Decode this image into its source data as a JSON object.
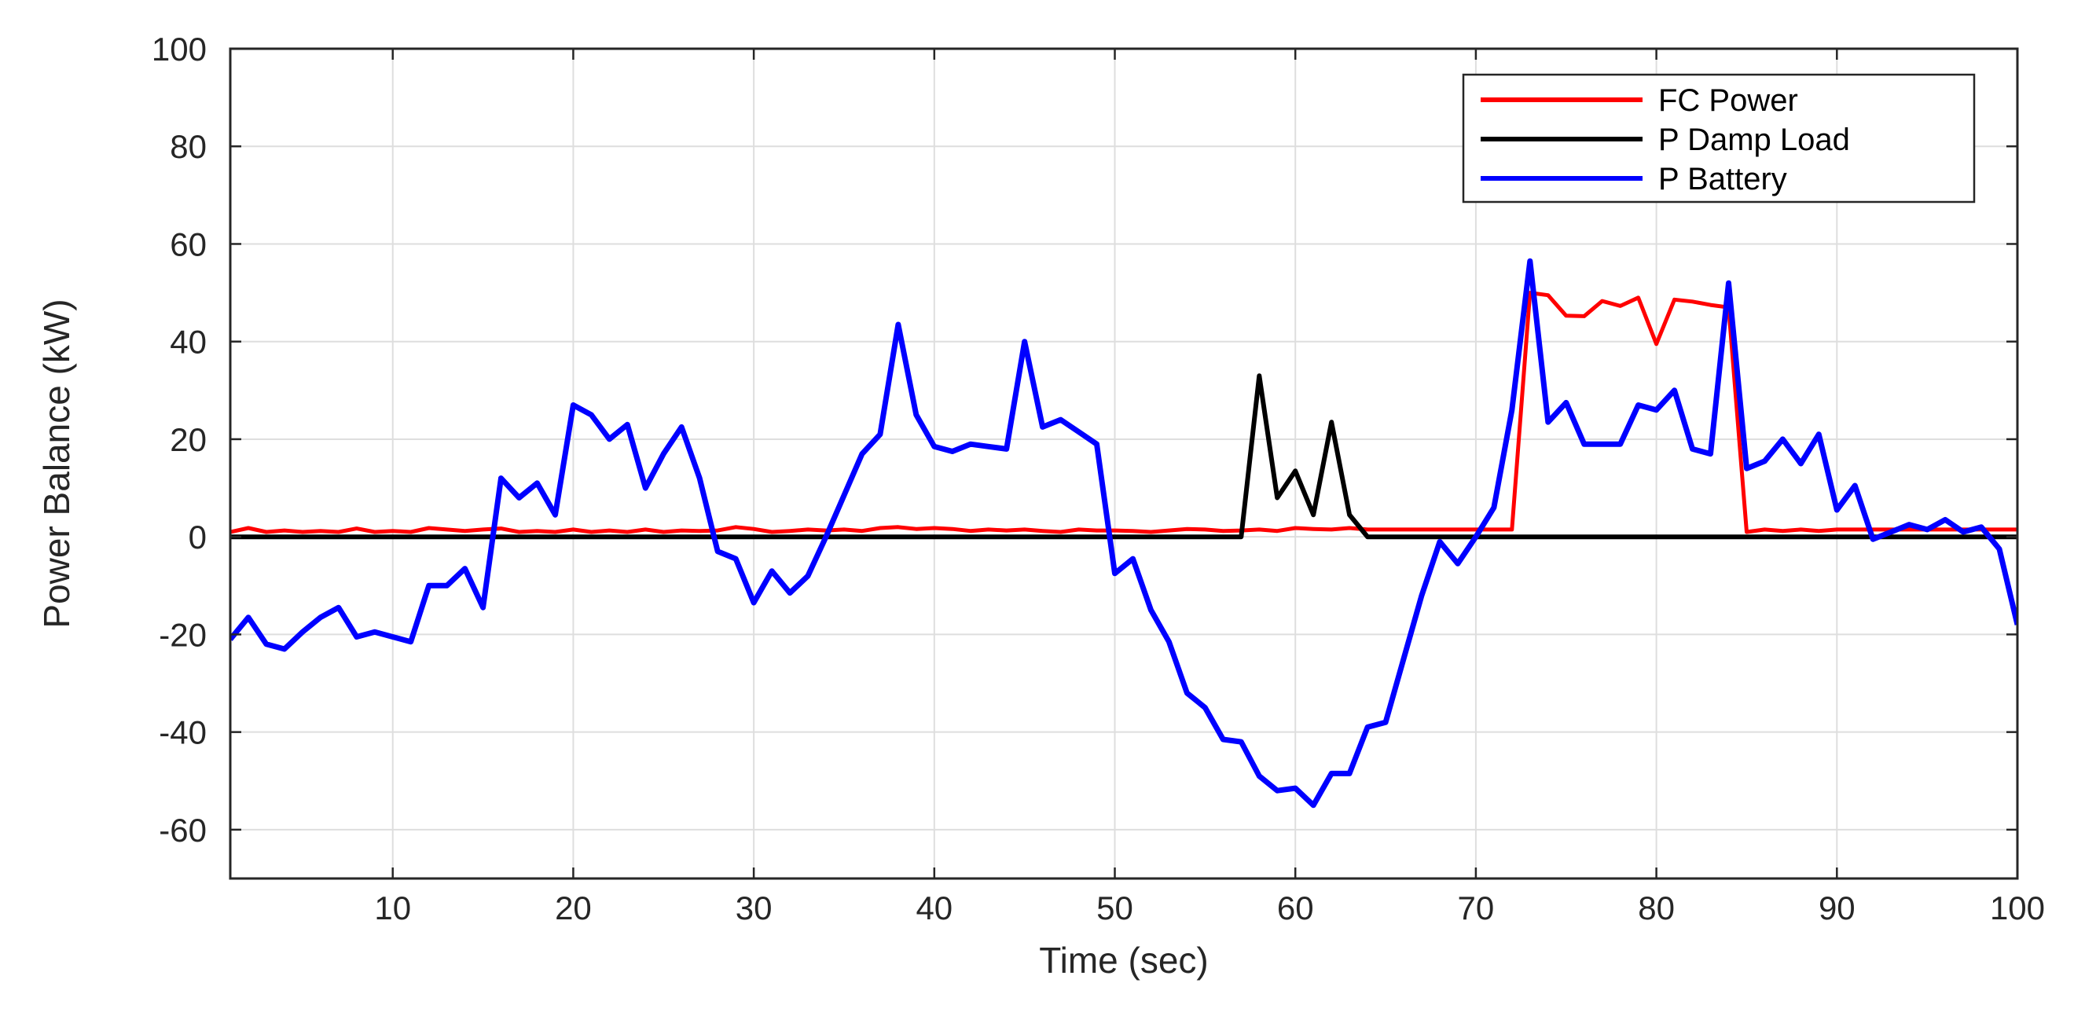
{
  "chart_data": {
    "type": "line",
    "title": "",
    "xlabel": "Time (sec)",
    "ylabel": "Power Balance (kW)",
    "xlim": [
      1,
      100
    ],
    "ylim": [
      -70,
      100
    ],
    "xticks": [
      10,
      20,
      30,
      40,
      50,
      60,
      70,
      80,
      90,
      100
    ],
    "yticks": [
      100,
      80,
      60,
      40,
      20,
      0,
      -20,
      -40,
      -60
    ],
    "grid": true,
    "legend_position": "top-right",
    "series": [
      {
        "name": "FC Power",
        "color": "#ff0000",
        "x": [
          1,
          2,
          3,
          4,
          5,
          6,
          7,
          8,
          9,
          10,
          11,
          12,
          13,
          14,
          15,
          16,
          17,
          18,
          19,
          20,
          21,
          22,
          23,
          24,
          25,
          26,
          27,
          28,
          29,
          30,
          31,
          32,
          33,
          34,
          35,
          36,
          37,
          38,
          39,
          40,
          41,
          42,
          43,
          44,
          45,
          46,
          47,
          48,
          49,
          50,
          51,
          52,
          53,
          54,
          55,
          56,
          57,
          58,
          59,
          60,
          61,
          62,
          63,
          64,
          65,
          66,
          67,
          68,
          69,
          70,
          71,
          72,
          73,
          74,
          75,
          76,
          77,
          78,
          79,
          80,
          81,
          82,
          83,
          84,
          85,
          86,
          87,
          88,
          89,
          90,
          91,
          92,
          93,
          94,
          95,
          96,
          97,
          98,
          99,
          100
        ],
        "y": [
          1,
          1.8,
          1,
          1.3,
          1,
          1.2,
          1,
          1.7,
          1,
          1.2,
          1,
          1.8,
          1.5,
          1.2,
          1.5,
          1.7,
          1,
          1.2,
          1,
          1.5,
          1,
          1.3,
          1,
          1.5,
          1,
          1.3,
          1.2,
          1.3,
          2,
          1.6,
          1,
          1.2,
          1.5,
          1.3,
          1.5,
          1.2,
          1.8,
          2,
          1.6,
          1.8,
          1.6,
          1.2,
          1.5,
          1.3,
          1.5,
          1.2,
          1,
          1.5,
          1.3,
          1.3,
          1.2,
          1,
          1.3,
          1.6,
          1.5,
          1.2,
          1.3,
          1.5,
          1.2,
          1.8,
          1.6,
          1.5,
          1.8,
          1.5,
          1.5,
          1.5,
          1.5,
          1.5,
          1.5,
          1.5,
          1.5,
          1.5,
          50,
          49.5,
          45.3,
          45.2,
          48.3,
          47.3,
          49,
          39.5,
          48.6,
          48.2,
          47.5,
          47,
          1,
          1.5,
          1.2,
          1.5,
          1.2,
          1.5,
          1.5,
          1.5,
          1.5,
          1.5,
          1.5,
          1.5,
          1.5,
          1.5,
          1.5,
          1.5
        ]
      },
      {
        "name": "P Damp Load",
        "color": "#000000",
        "x": [
          1,
          10,
          20,
          30,
          40,
          50,
          55,
          57,
          58,
          59,
          60,
          61,
          62,
          63,
          64,
          65,
          70,
          75,
          80,
          85,
          90,
          95,
          100
        ],
        "y": [
          0,
          0,
          0,
          0,
          0,
          0,
          0,
          0,
          33,
          8,
          13.5,
          4.5,
          23.5,
          4.5,
          0,
          0,
          0,
          0,
          0,
          0,
          0,
          0,
          0
        ]
      },
      {
        "name": "P Battery",
        "color": "#0000ff",
        "x": [
          1,
          2,
          3,
          4,
          5,
          6,
          7,
          8,
          9,
          10,
          11,
          12,
          13,
          14,
          15,
          16,
          17,
          18,
          19,
          20,
          21,
          22,
          23,
          24,
          25,
          26,
          27,
          28,
          29,
          30,
          31,
          32,
          33,
          34,
          35,
          36,
          37,
          38,
          39,
          40,
          41,
          42,
          43,
          44,
          45,
          46,
          47,
          48,
          49,
          50,
          51,
          52,
          53,
          54,
          55,
          56,
          57,
          58,
          59,
          60,
          61,
          62,
          63,
          64,
          65,
          66,
          67,
          68,
          69,
          70,
          71,
          72,
          73,
          74,
          75,
          76,
          77,
          78,
          79,
          80,
          81,
          82,
          83,
          84,
          85,
          86,
          87,
          88,
          89,
          90,
          91,
          92,
          93,
          94,
          95,
          96,
          97,
          98,
          99,
          100
        ],
        "y": [
          -21,
          -16.5,
          -22,
          -23,
          -19.5,
          -16.5,
          -14.5,
          -20.5,
          -19.5,
          -20.5,
          -21.5,
          -10,
          -10,
          -6.5,
          -14.5,
          12,
          8,
          11,
          4.5,
          27,
          25,
          20,
          23,
          10,
          17,
          22.5,
          12,
          -3,
          -4.5,
          -13.5,
          -7,
          -11.5,
          -8,
          0,
          8.5,
          17,
          21,
          43.5,
          25,
          18.5,
          17.5,
          19,
          18.5,
          18,
          40,
          22.5,
          24,
          21.5,
          19,
          -7.5,
          -4.5,
          -15,
          -21.5,
          -32,
          -35,
          -41.5,
          -42,
          -49,
          -52,
          -51.5,
          -55,
          -48.5,
          -48.5,
          -39,
          -38,
          -25,
          -12,
          -1,
          -5.5,
          0,
          6,
          26,
          56.5,
          23.5,
          27.5,
          19,
          19,
          19,
          27,
          26,
          30,
          18,
          17,
          52,
          14,
          15.5,
          20,
          15,
          21,
          5.5,
          10.5,
          -0.5,
          1,
          2.5,
          1.5,
          3.5,
          1,
          2,
          -2.5,
          -18
        ]
      }
    ]
  }
}
